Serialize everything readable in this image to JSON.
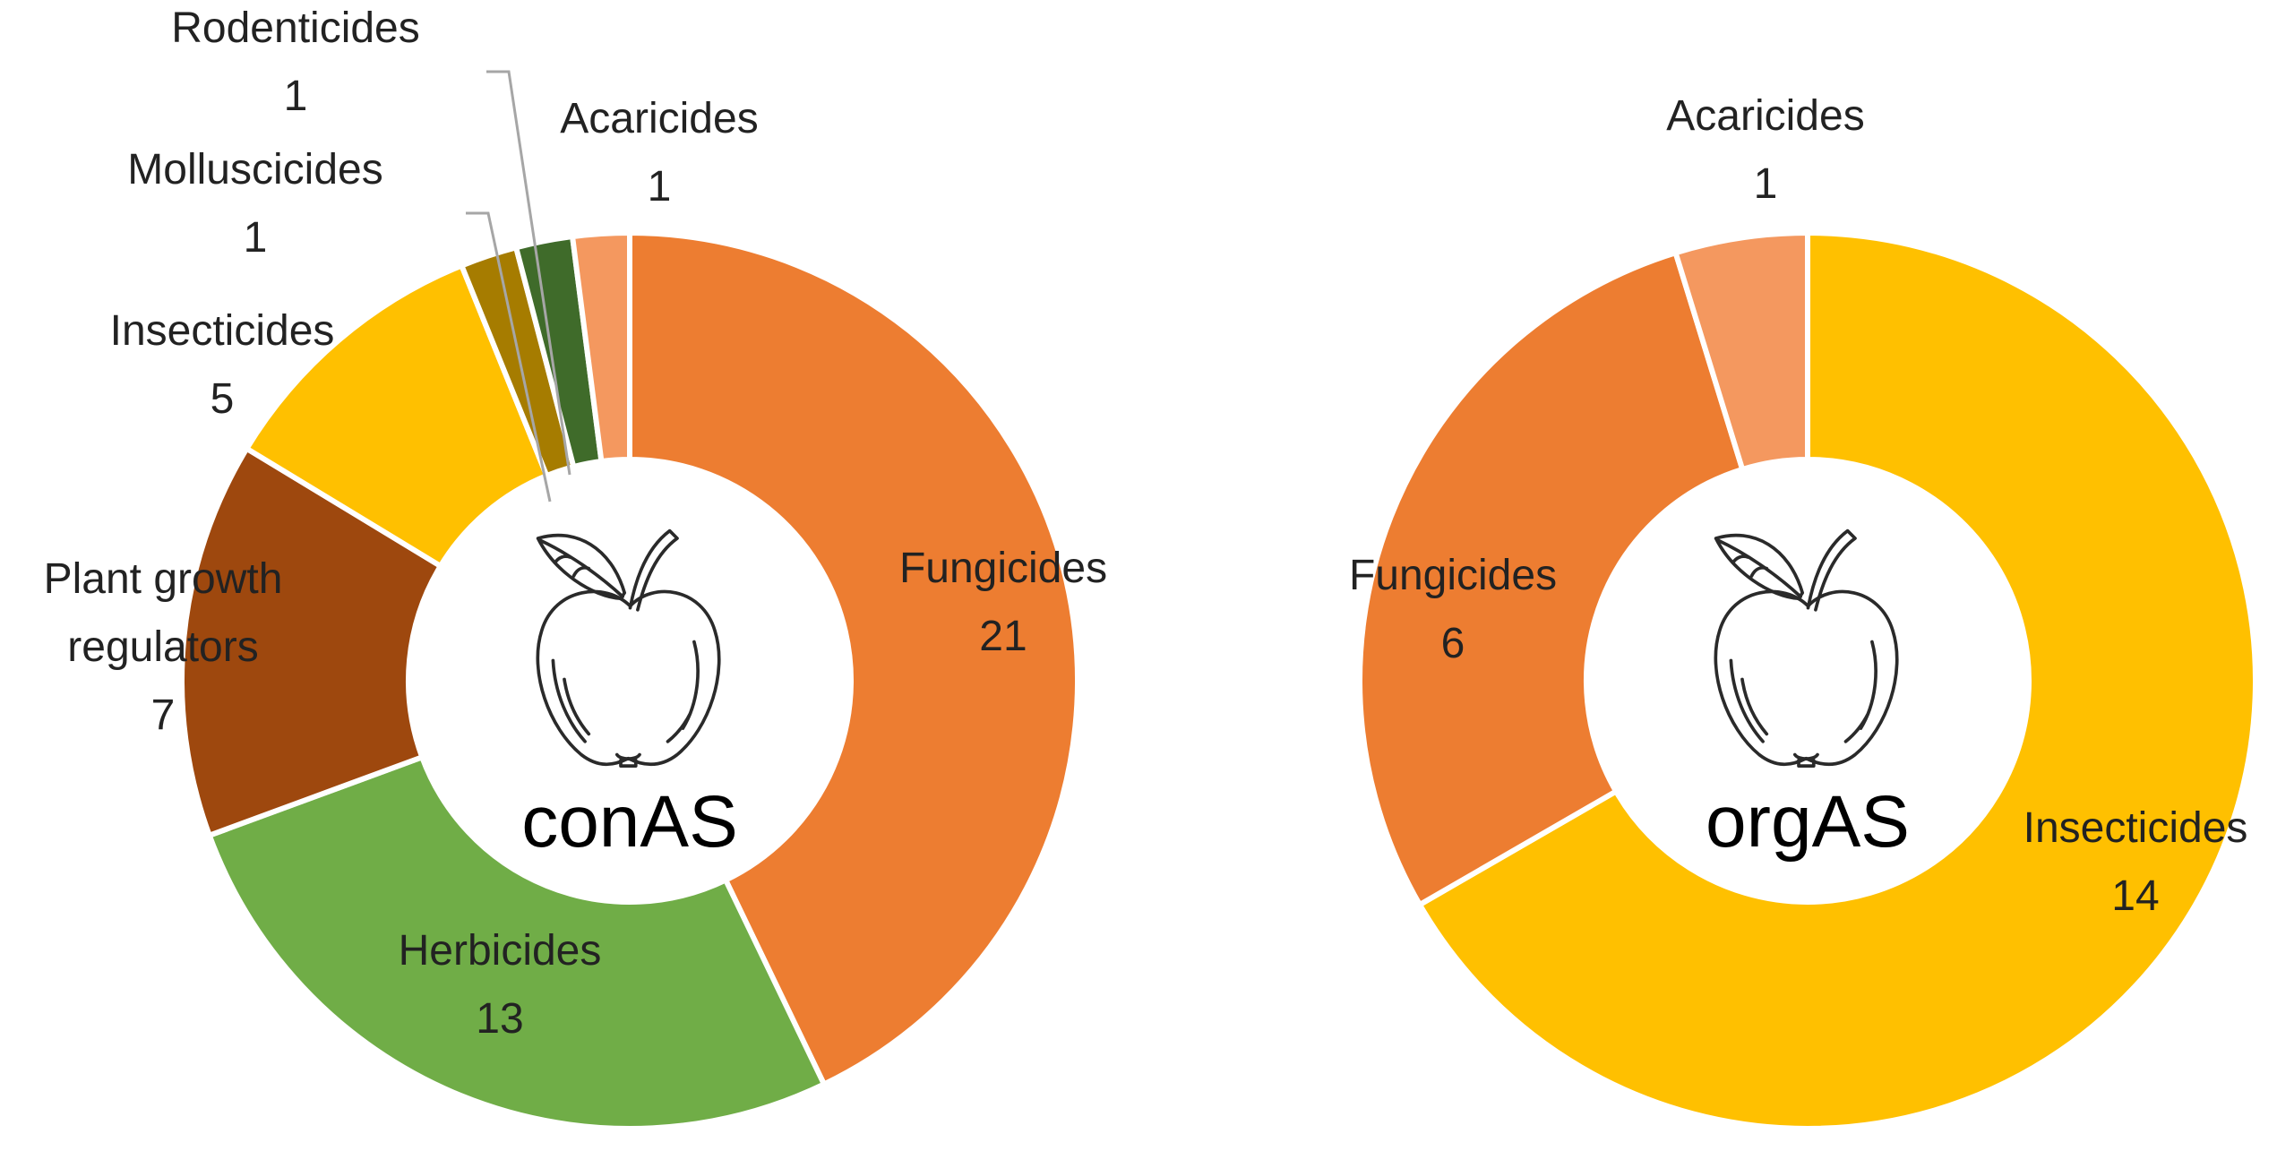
{
  "chart_data": [
    {
      "type": "pie",
      "center_label": "conAS",
      "slices": [
        {
          "name": "Fungicides",
          "value": 21,
          "color": "#ED7D31"
        },
        {
          "name": "Herbicides",
          "value": 13,
          "color": "#70AD47"
        },
        {
          "name": "Plant growth regulators",
          "name_lines": [
            "Plant growth",
            "regulators"
          ],
          "value": 7,
          "color": "#9E480E"
        },
        {
          "name": "Insecticides",
          "value": 5,
          "color": "#FFC000"
        },
        {
          "name": "Molluscicides",
          "value": 1,
          "color": "#A67C00"
        },
        {
          "name": "Rodenticides",
          "value": 1,
          "color": "#3F6B2A"
        },
        {
          "name": "Acaricides",
          "value": 1,
          "color": "#F4985F"
        }
      ]
    },
    {
      "type": "pie",
      "center_label": "orgAS",
      "slices": [
        {
          "name": "Insecticides",
          "value": 14,
          "color": "#FFC000"
        },
        {
          "name": "Fungicides",
          "value": 6,
          "color": "#ED7D31"
        },
        {
          "name": "Acaricides",
          "value": 1,
          "color": "#F4985F"
        }
      ]
    }
  ]
}
